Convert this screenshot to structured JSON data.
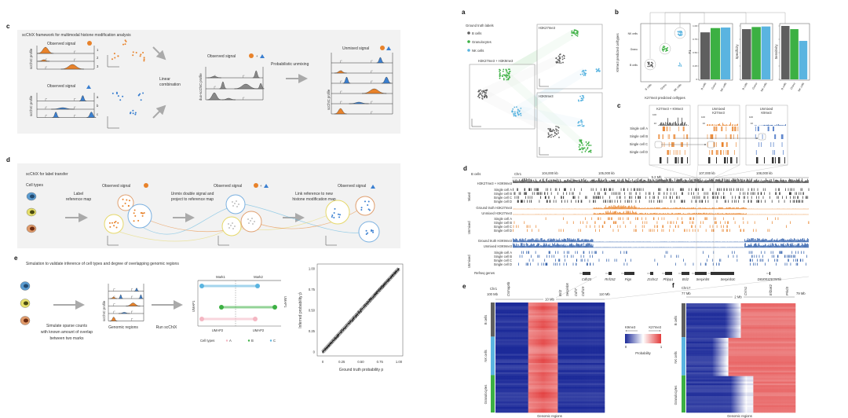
{
  "colors": {
    "orange": "#e8822a",
    "blue": "#3a7fd0",
    "gray": "#5f5f5f",
    "green": "#3cb043",
    "lightblue": "#5ab4e0",
    "pink": "#f4b6c2",
    "panel_bg": "#f2f2f2",
    "heat_blue": "#1c2a99",
    "heat_red": "#e23a3a"
  },
  "panel_labels": {
    "a": "a",
    "b": "b",
    "c_left": "c",
    "c_right": "c",
    "d_left": "d",
    "d_right": "d",
    "e_left": "e",
    "e_right": "e",
    "f": "f"
  },
  "framework": {
    "title": "scChIX framework for multimodal histone modification analysis",
    "observed_signal": "Observed signal",
    "scchic_profile": "scChIC profile",
    "orange_tracks": [
      "1",
      "2",
      "3"
    ],
    "blue_tracks": [
      "a",
      "b",
      "c"
    ],
    "linear": "Linear",
    "combination": "combination",
    "duo_profile": "duo-scChIC profile",
    "plus": "+",
    "probabilistic_unmixing": "Probabilistic unmixing",
    "unmixed_signal": "Unmixed signal"
  },
  "label_transfer": {
    "title": "scChIX for label transfer",
    "cell_types": "Cell types",
    "step1": [
      "Label",
      "reference map"
    ],
    "step2": [
      "Unmix double signal and",
      "project to reference map"
    ],
    "step3": [
      "Link reference to new",
      "histone modification map"
    ],
    "observed_signal": "Observed signal",
    "plus": "+"
  },
  "simulation": {
    "title": "Simulation to validate inference of cell types and degree of overlapping genomic regions",
    "simulate": [
      "Simulate sparse counts",
      "with known amount of overlap",
      "between two marks"
    ],
    "scchic_profile": "scChIC profile",
    "genomic_regions": "Genomic regions",
    "run": "Run scChIX",
    "mark1": "Mark1",
    "mark2": "Mark2",
    "umap1": "UMAP1",
    "umap2": "UMAP2",
    "cell_types": "Cell types",
    "legend": [
      {
        "label": "A",
        "color": "#f4b6c2"
      },
      {
        "label": "B",
        "color": "#3cb043"
      },
      {
        "label": "C",
        "color": "#5ab4e0"
      }
    ]
  },
  "umap_panel": {
    "legend_title": "Ground truth labels",
    "legend": [
      {
        "label": "B cells",
        "color": "#5f5f5f"
      },
      {
        "label": "Granulocytes",
        "color": "#3cb043"
      },
      {
        "label": "NK cells",
        "color": "#5ab4e0"
      }
    ],
    "combined": "H3K27me3 + H3K9me3",
    "k27": "H3K27me3",
    "k9": "H3K9me3",
    "umap1": "UMAP1",
    "umap2": "UMAP2"
  },
  "confusion": {
    "ylabel": "K9me3 predicted celltypes",
    "xlabel": "K27me3 predicted celltypes",
    "categories": [
      "B cells",
      "Granu",
      "NK cells"
    ]
  },
  "chart_data": [
    {
      "type": "scatter",
      "xlabel": "Ground truth probability p",
      "ylabel": "Inferred probability p̂",
      "xlim": [
        0,
        1
      ],
      "ylim": [
        0,
        1
      ],
      "xticks": [
        "0",
        "0.25",
        "0.50",
        "0.75",
        "1.00"
      ],
      "yticks": [
        "0",
        "0.25",
        "0.50",
        "0.75",
        "1.00"
      ],
      "x": [
        0,
        0.1,
        0.2,
        0.3,
        0.4,
        0.5,
        0.6,
        0.7,
        0.8,
        0.9,
        1.0
      ],
      "y": [
        0,
        0.1,
        0.2,
        0.3,
        0.4,
        0.5,
        0.6,
        0.7,
        0.8,
        0.9,
        1.0
      ]
    },
    {
      "type": "bar",
      "ylabel": "F1",
      "categories": [
        "B cells",
        "Granu",
        "NK cells"
      ],
      "values": [
        0.88,
        0.96,
        0.97
      ],
      "ylim": [
        0,
        1
      ],
      "yticks": [
        "0",
        "0.25",
        "0.50",
        "0.75",
        "1.00"
      ]
    },
    {
      "type": "bar",
      "ylabel": "Specificity",
      "categories": [
        "B cells",
        "Granu",
        "NK cells"
      ],
      "values": [
        0.94,
        0.98,
        0.99
      ],
      "ylim": [
        0,
        1
      ]
    },
    {
      "type": "bar",
      "ylabel": "Sensitivity",
      "categories": [
        "B cells",
        "Granu",
        "NK cells"
      ],
      "values": [
        1.0,
        0.94,
        0.72
      ],
      "ylim": [
        0,
        1
      ]
    }
  ],
  "zoom_tracks": {
    "boxes": [
      [
        "K27me3 + K9me3",
        ""
      ],
      [
        "Unmixed",
        "K27me3"
      ],
      [
        "Unmixed",
        "K9me3"
      ]
    ],
    "rows": [
      "Single cell A",
      "Single cell B",
      "Single cell C",
      "Single cell D"
    ],
    "tick_hi": "100",
    "tick_lo": "10"
  },
  "genome_tracks": {
    "cell": "B cells",
    "chr": "Chr1",
    "ticks": [
      "104,000 kb",
      "105,000 kb",
      "107,000 kb",
      "108,000 kb"
    ],
    "span": "5.2 Mb",
    "mixed_title": "H3K27me3 + H3K9me3",
    "gt_k27": "Ground truth H3K27me3",
    "un_k27": "Unmixed H3K27me3",
    "gt_k9": "Ground truth H3K9me3",
    "un_k9": "Unmixed H3K9me3",
    "rows": [
      "Single cell A",
      "Single cell B",
      "Single cell C",
      "Single cell D"
    ],
    "group_mixed": "Mixed",
    "group_unmixed": "Unmixed",
    "refseq": "Refseq genes",
    "genes": [
      "Cdh20",
      "Rnf152",
      "Pign",
      "Zcchc2",
      "Phlpp1",
      "Bcl2",
      "Serpinb5",
      "Serpinb3c",
      "D830032E09Rik"
    ]
  },
  "heatmap_e": {
    "chr": "Chr1",
    "start": "100 Mb",
    "end": "110 Mb",
    "span": "10 Mb",
    "genes": [
      "Cntnap5b",
      "Bcl2",
      "Serpinb5",
      "Cdh7",
      "Cdh19"
    ],
    "rows": [
      "B cells",
      "NK cells",
      "Granulocytes"
    ],
    "xlabel": "Genomic regions"
  },
  "colorbar": {
    "left": "K9me3",
    "right": "K27me3",
    "min": "0",
    "max": "1",
    "label": "Probability"
  },
  "heatmap_f": {
    "chr": "Chr17",
    "start": "77 Mb",
    "end": "79 Mb",
    "span": "2 Mb",
    "genes": [
      "Crim1",
      "Eif2ak2",
      "Prkd3"
    ],
    "rows": [
      "B cells",
      "NK cells",
      "Granulocytes"
    ],
    "xlabel": "Genomic regions"
  }
}
